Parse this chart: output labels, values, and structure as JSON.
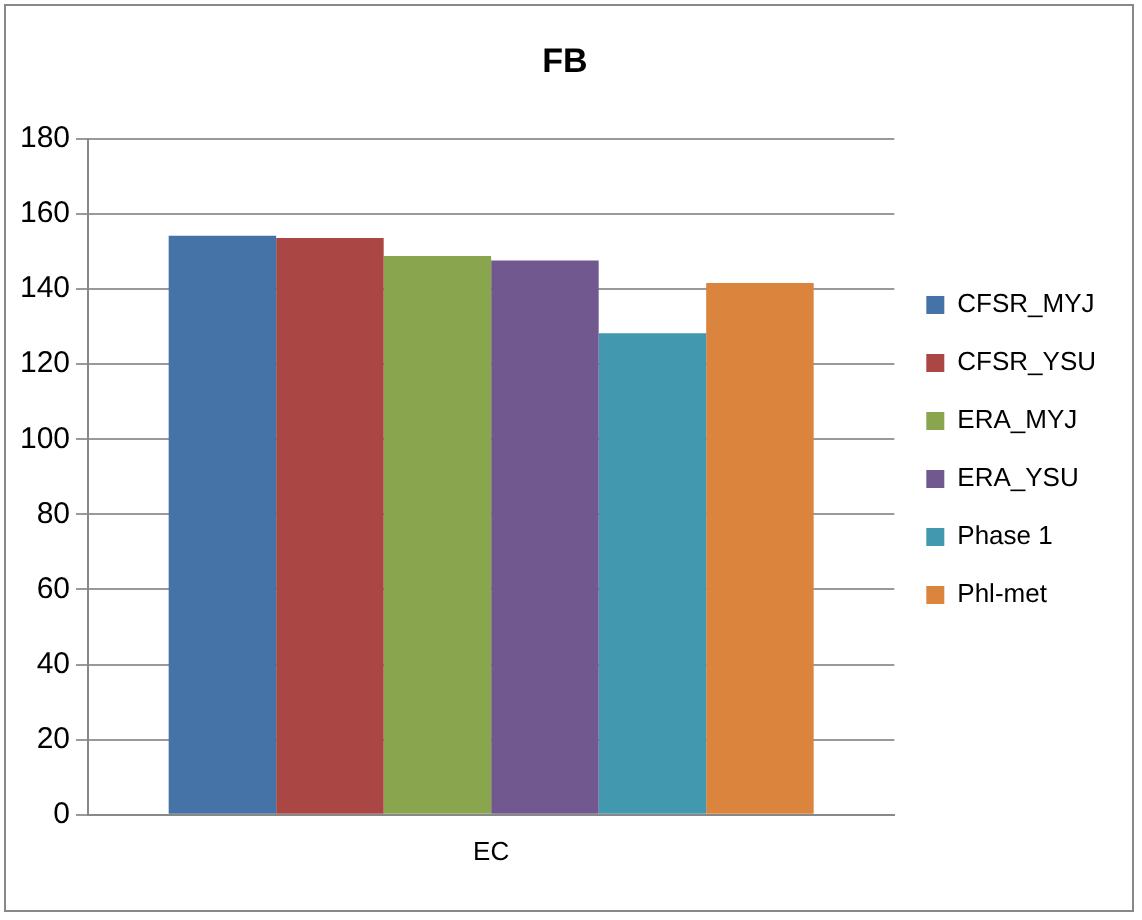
{
  "chart_data": {
    "type": "bar",
    "title": "FB",
    "categories": [
      "EC"
    ],
    "series": [
      {
        "name": "CFSR_MYJ",
        "color": "#4572a7",
        "values": [
          154.2
        ]
      },
      {
        "name": "CFSR_YSU",
        "color": "#aa4643",
        "values": [
          153.6
        ]
      },
      {
        "name": "ERA_MYJ",
        "color": "#89a54e",
        "values": [
          148.8
        ]
      },
      {
        "name": "ERA_YSU",
        "color": "#71588f",
        "values": [
          147.6
        ]
      },
      {
        "name": "Phase 1",
        "color": "#4198af",
        "values": [
          128.2
        ]
      },
      {
        "name": "Phl-met",
        "color": "#db843d",
        "values": [
          141.6
        ]
      }
    ],
    "ylim": [
      0,
      180
    ],
    "yticks": [
      0,
      20,
      40,
      60,
      80,
      100,
      120,
      140,
      160,
      180
    ],
    "grid": "y",
    "legend": "right"
  }
}
